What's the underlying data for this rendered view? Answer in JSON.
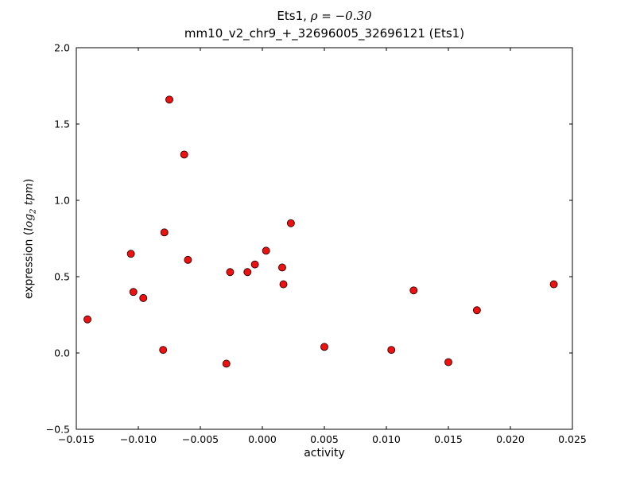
{
  "figure": {
    "title_prefix": "Ets1, ",
    "title_math": "ρ = −0.30",
    "title_line2": "mm10_v2_chr9_+_32696005_32696121 (Ets1)",
    "xlabel": "activity",
    "ylabel": {
      "pre": "expression (",
      "log": "log",
      "sub": "2",
      "tpm": "tpm",
      "post": ")"
    }
  },
  "chart_data": {
    "type": "scatter",
    "title": "Ets1, ρ=−0.30",
    "subtitle": "mm10_v2_chr9_+_32696005_32696121 (Ets1)",
    "xlabel": "activity",
    "ylabel": "expression (log2 tpm)",
    "xlim": [
      -0.015,
      0.025
    ],
    "ylim": [
      -0.5,
      2.0
    ],
    "xticks": [
      -0.015,
      -0.01,
      -0.005,
      0.0,
      0.005,
      0.01,
      0.015,
      0.02,
      0.025
    ],
    "xtick_labels": [
      "−0.015",
      "−0.010",
      "−0.005",
      "0.000",
      "0.005",
      "0.010",
      "0.015",
      "0.020",
      "0.025"
    ],
    "yticks": [
      -0.5,
      0.0,
      0.5,
      1.0,
      1.5,
      2.0
    ],
    "ytick_labels": [
      "−0.5",
      "0.0",
      "0.5",
      "1.0",
      "1.5",
      "2.0"
    ],
    "grid": false,
    "legend": null,
    "marker": {
      "color": "#ee1111",
      "edge": "#330000",
      "radius": 4.5
    },
    "points": [
      [
        -0.0141,
        0.22
      ],
      [
        -0.0106,
        0.65
      ],
      [
        -0.0104,
        0.4
      ],
      [
        -0.0096,
        0.36
      ],
      [
        -0.008,
        0.02
      ],
      [
        -0.0079,
        0.79
      ],
      [
        -0.0075,
        1.66
      ],
      [
        -0.0063,
        1.3
      ],
      [
        -0.006,
        0.61
      ],
      [
        -0.0029,
        -0.07
      ],
      [
        -0.0026,
        0.53
      ],
      [
        -0.0012,
        0.53
      ],
      [
        -0.0006,
        0.58
      ],
      [
        0.0003,
        0.67
      ],
      [
        0.0016,
        0.56
      ],
      [
        0.0017,
        0.45
      ],
      [
        0.0023,
        0.85
      ],
      [
        0.005,
        0.04
      ],
      [
        0.0104,
        0.02
      ],
      [
        0.0122,
        0.41
      ],
      [
        0.015,
        -0.06
      ],
      [
        0.0173,
        0.28
      ],
      [
        0.0235,
        0.45
      ]
    ]
  }
}
